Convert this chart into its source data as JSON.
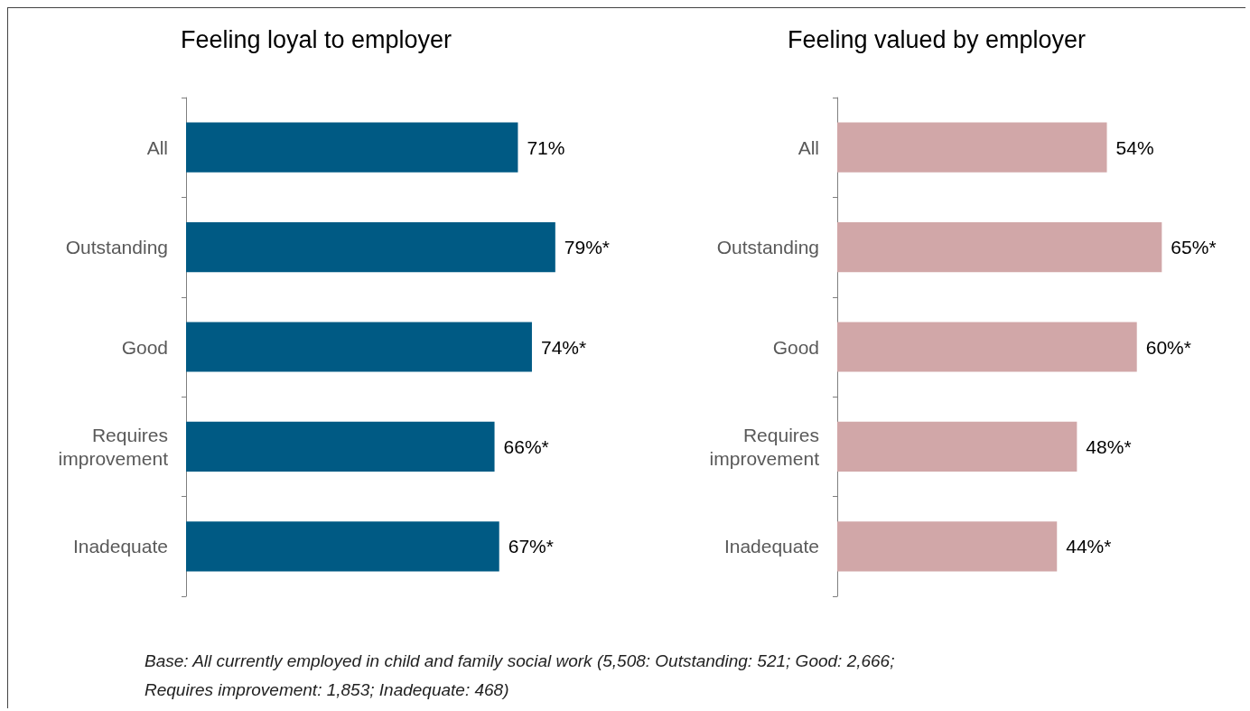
{
  "chart_data": [
    {
      "type": "bar",
      "orientation": "horizontal",
      "title": "Feeling loyal to employer",
      "categories": [
        "All",
        "Outstanding",
        "Good",
        "Requires\nimprovement",
        "Inadequate"
      ],
      "series": [
        {
          "color": "#005a84",
          "values": [
            71,
            79,
            74,
            66,
            67
          ],
          "value_labels": [
            "71%",
            "79%*",
            "74%*",
            "66%*",
            "67%*"
          ]
        }
      ],
      "annotations": [
        "Base: All currently employed in child and family social work (5,508: Outstanding: 521; Good: 2,666;\nRequires improvement: 1,853; Inadequate: 468)"
      ]
    },
    {
      "type": "bar",
      "orientation": "horizontal",
      "title": "Feeling valued by employer",
      "categories": [
        "All",
        "Outstanding",
        "Good",
        "Requires\nimprovement",
        "Inadequate"
      ],
      "series": [
        {
          "color": "#d1a7a8",
          "values": [
            54,
            65,
            60,
            48,
            44
          ],
          "value_labels": [
            "54%",
            "65%*",
            "60%*",
            "48%*",
            "44%*"
          ]
        }
      ]
    }
  ]
}
